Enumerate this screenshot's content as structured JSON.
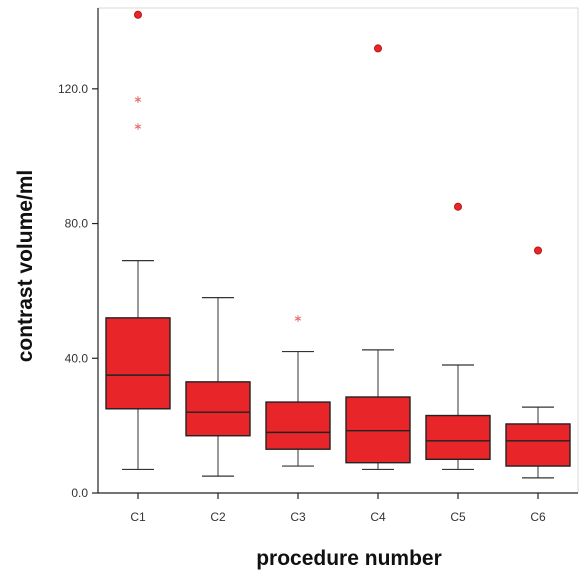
{
  "chart_data": {
    "type": "box",
    "title": "",
    "xlabel": "procedure number",
    "ylabel": "contrast volume/ml",
    "ylim": [
      0,
      144
    ],
    "yticks": [
      0,
      40,
      80,
      120
    ],
    "ytick_labels": [
      "0.0",
      "40.0",
      "80.0",
      "120.0"
    ],
    "categories": [
      "C1",
      "C2",
      "C3",
      "C4",
      "C5",
      "C6"
    ],
    "grid": false,
    "box_color": "#e8262a",
    "outlier_color": "#e8262a",
    "boxes": [
      {
        "category": "C1",
        "whisker_low": 7,
        "q1": 25,
        "median": 35,
        "q3": 52,
        "whisker_high": 69,
        "outliers": [
          {
            "value": 142,
            "marker": "circle"
          },
          {
            "value": 117,
            "marker": "star"
          },
          {
            "value": 109,
            "marker": "star"
          }
        ]
      },
      {
        "category": "C2",
        "whisker_low": 5,
        "q1": 17,
        "median": 24,
        "q3": 33,
        "whisker_high": 58,
        "outliers": []
      },
      {
        "category": "C3",
        "whisker_low": 8,
        "q1": 13,
        "median": 18,
        "q3": 27,
        "whisker_high": 42,
        "outliers": [
          {
            "value": 52,
            "marker": "star"
          }
        ]
      },
      {
        "category": "C4",
        "whisker_low": 7,
        "q1": 9,
        "median": 18.5,
        "q3": 28.5,
        "whisker_high": 42.5,
        "outliers": [
          {
            "value": 132,
            "marker": "circle"
          }
        ]
      },
      {
        "category": "C5",
        "whisker_low": 7,
        "q1": 10,
        "median": 15.5,
        "q3": 23,
        "whisker_high": 38,
        "outliers": [
          {
            "value": 85,
            "marker": "circle"
          }
        ]
      },
      {
        "category": "C6",
        "whisker_low": 4.5,
        "q1": 8,
        "median": 15.5,
        "q3": 20.5,
        "whisker_high": 25.5,
        "outliers": [
          {
            "value": 72,
            "marker": "circle"
          }
        ]
      }
    ]
  }
}
